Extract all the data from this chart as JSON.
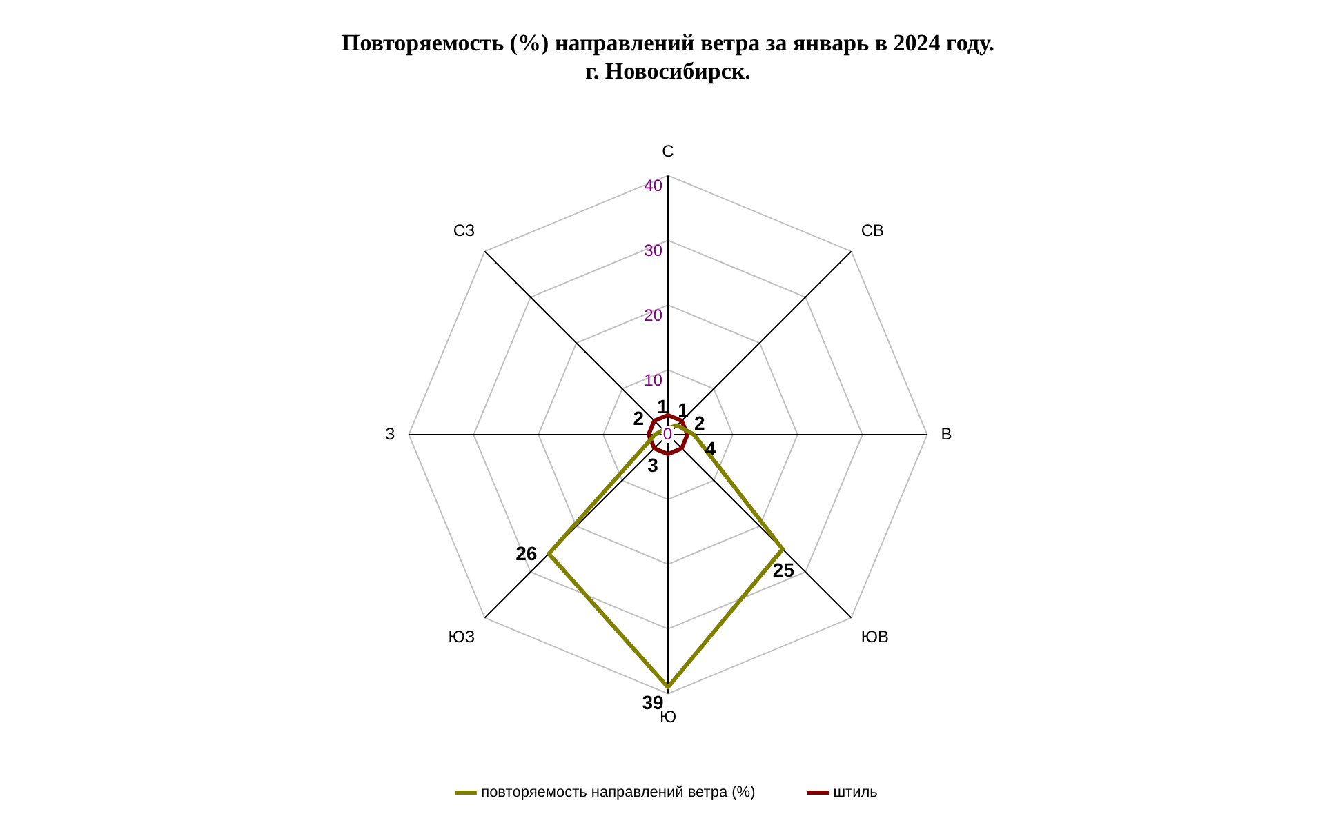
{
  "chart_data": {
    "type": "radar",
    "title": "Повторяемость (%) направлений ветра за январь в 2024 году.\nг. Новосибирск.",
    "categories": [
      "С",
      "СВ",
      "В",
      "ЮВ",
      "Ю",
      "ЮЗ",
      "З",
      "СЗ"
    ],
    "ylim": [
      0,
      40
    ],
    "yticks": [
      0,
      10,
      20,
      30,
      40
    ],
    "grid": true,
    "legend": "bottom",
    "marker": "none",
    "line_style": "solid",
    "series": [
      {
        "name": "повторяемость направлений ветра (%)",
        "color": "#808000",
        "values": [
          1,
          2,
          4,
          25,
          39,
          26,
          2,
          1
        ],
        "value_labels": [
          "1",
          "2",
          "4",
          "25",
          "39",
          "26",
          "2",
          "1"
        ]
      },
      {
        "name": "штиль",
        "color": "#800000",
        "values": [
          3,
          3,
          3,
          3,
          3,
          3,
          3,
          3
        ],
        "value_labels": [
          null,
          null,
          null,
          null,
          "3",
          null,
          null,
          null
        ]
      }
    ]
  }
}
